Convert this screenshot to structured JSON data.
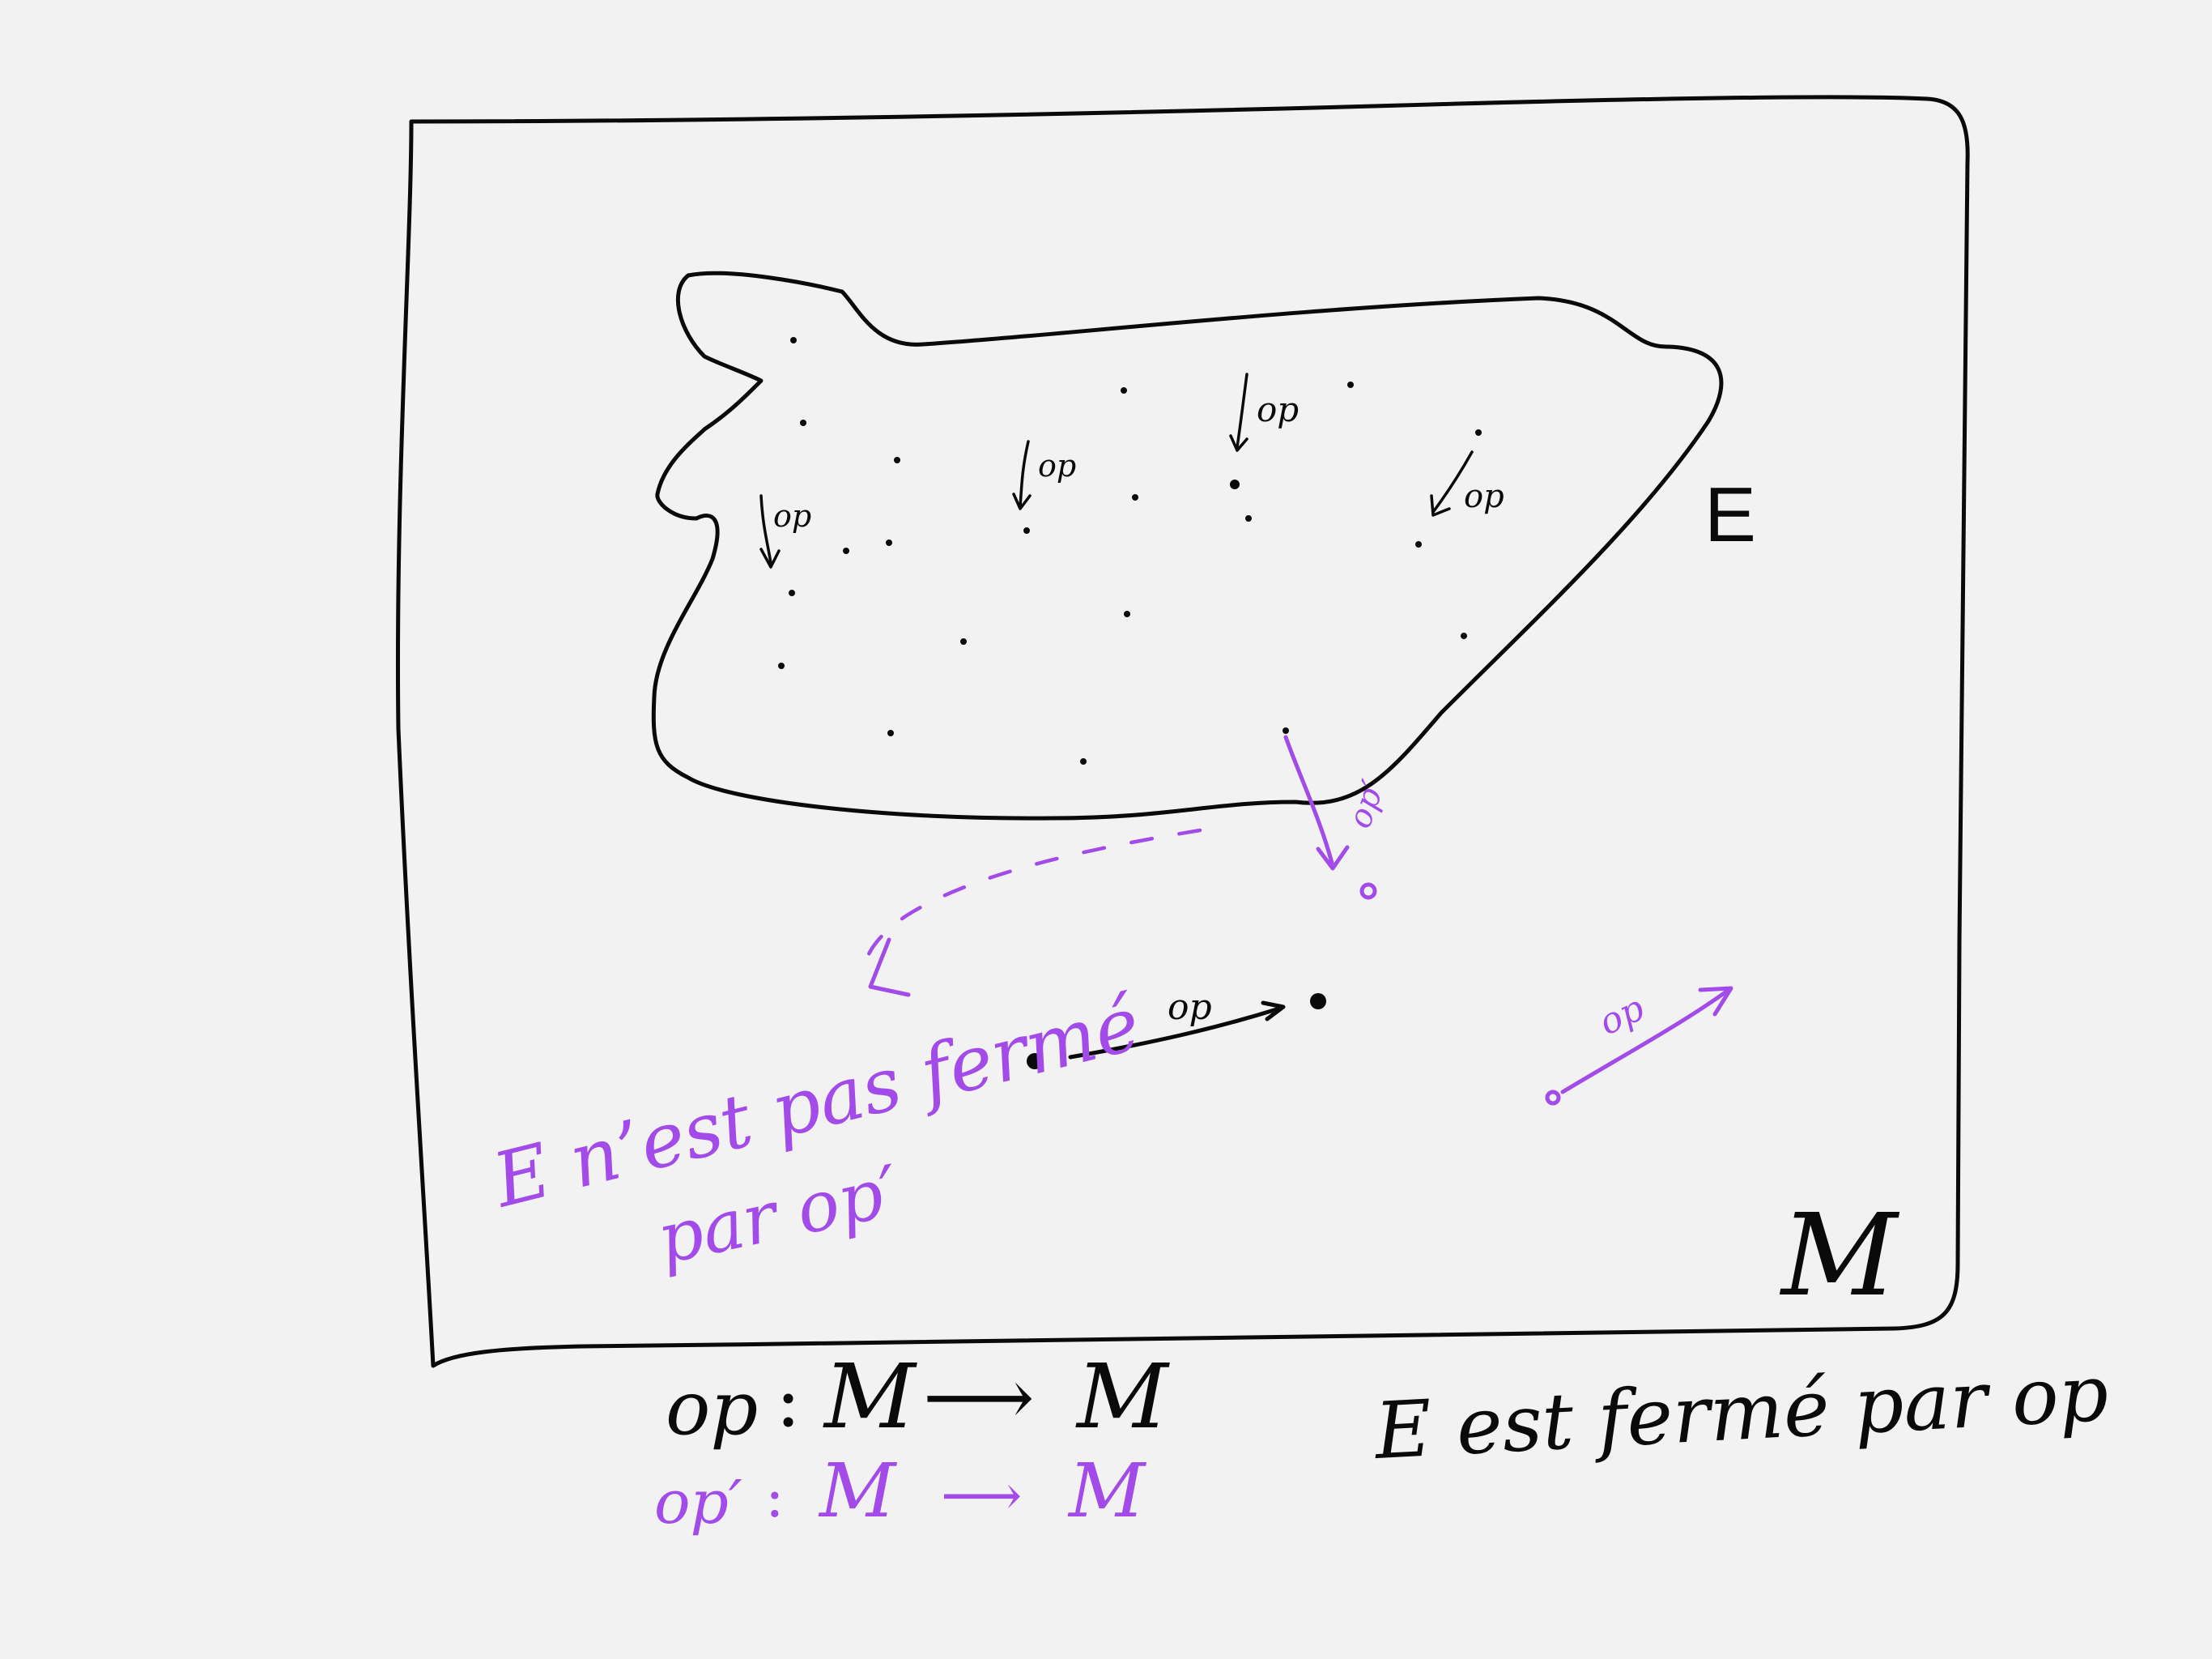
{
  "labels": {
    "set_E": "E",
    "universe_M": "M",
    "op_in_set": "op",
    "op_prime": "op′",
    "op_below": "op",
    "op_right": "op",
    "not_closed_line1": "E n’est pas fermé",
    "not_closed_line2": "par op′",
    "closed_statement": "E est fermé par op"
  },
  "definitions": {
    "op_name": "op",
    "op_domain": "M",
    "op_codomain": "M",
    "op_prime_name": "op′",
    "op_prime_domain": "M",
    "op_prime_codomain": "M",
    "colon": ":",
    "arrow": "⟶"
  },
  "colors": {
    "ink": "#0a0a0a",
    "accent": "#a24be8",
    "paper": "#f2f2f2"
  }
}
